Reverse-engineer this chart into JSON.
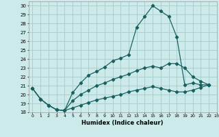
{
  "xlabel": "Humidex (Indice chaleur)",
  "bg_color": "#cceaea",
  "grid_color": "#aacece",
  "line_color": "#1a6060",
  "xlim": [
    -0.5,
    23
  ],
  "ylim": [
    18,
    30.5
  ],
  "xticks": [
    0,
    1,
    2,
    3,
    4,
    5,
    6,
    7,
    8,
    9,
    10,
    11,
    12,
    13,
    14,
    15,
    16,
    17,
    18,
    19,
    20,
    21,
    22,
    23
  ],
  "yticks": [
    18,
    19,
    20,
    21,
    22,
    23,
    24,
    25,
    26,
    27,
    28,
    29,
    30
  ],
  "series": [
    {
      "x": [
        0,
        1,
        2,
        3,
        4,
        5,
        6,
        7,
        8,
        9,
        10,
        11,
        12,
        13,
        14,
        15,
        16,
        17,
        18,
        19,
        20,
        21,
        22
      ],
      "y": [
        20.7,
        19.5,
        18.8,
        18.3,
        18.2,
        20.2,
        21.3,
        22.2,
        22.6,
        23.1,
        23.8,
        24.1,
        24.5,
        27.6,
        28.8,
        30.0,
        29.4,
        28.8,
        26.5,
        21.1,
        21.3,
        21.1,
        21.1
      ]
    },
    {
      "x": [
        0,
        1,
        2,
        3,
        4,
        5,
        6,
        7,
        8,
        9,
        10,
        11,
        12,
        13,
        14,
        15,
        16,
        17,
        18,
        19,
        20,
        21,
        22
      ],
      "y": [
        20.7,
        19.5,
        18.8,
        18.3,
        18.2,
        19.3,
        20.0,
        20.5,
        21.0,
        21.3,
        21.7,
        22.0,
        22.3,
        22.7,
        23.0,
        23.2,
        23.0,
        23.5,
        23.5,
        23.0,
        22.0,
        21.5,
        21.1
      ]
    },
    {
      "x": [
        0,
        1,
        2,
        3,
        4,
        5,
        6,
        7,
        8,
        9,
        10,
        11,
        12,
        13,
        14,
        15,
        16,
        17,
        18,
        19,
        20,
        21,
        22
      ],
      "y": [
        20.7,
        19.5,
        18.8,
        18.3,
        18.2,
        18.5,
        18.8,
        19.1,
        19.4,
        19.6,
        19.8,
        20.0,
        20.3,
        20.5,
        20.7,
        20.9,
        20.7,
        20.5,
        20.3,
        20.3,
        20.5,
        20.8,
        21.1
      ]
    }
  ]
}
